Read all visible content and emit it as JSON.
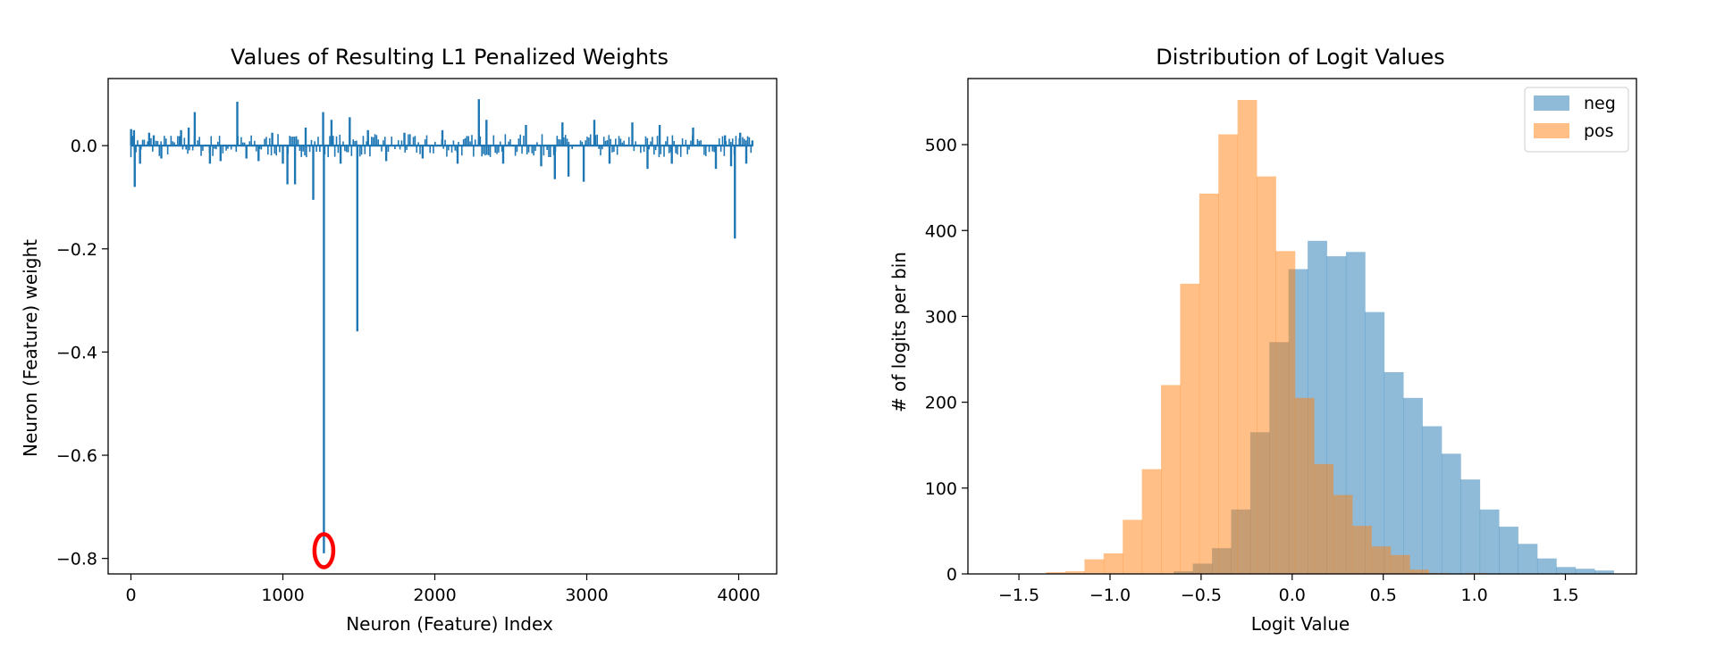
{
  "chart_data": [
    {
      "type": "line",
      "title": "Values of Resulting L1 Penalized Weights",
      "xlabel": "Neuron (Feature) Index",
      "ylabel": "Neuron (Feature) weight",
      "xlim": [
        -150,
        4250
      ],
      "ylim": [
        -0.83,
        0.13
      ],
      "xticks": [
        0,
        1000,
        2000,
        3000,
        4000
      ],
      "xtick_labels": [
        "0",
        "1000",
        "2000",
        "3000",
        "4000"
      ],
      "yticks": [
        0.0,
        -0.2,
        -0.4,
        -0.6,
        -0.8
      ],
      "ytick_labels": [
        "0.0",
        "−0.2",
        "−0.4",
        "−0.6",
        "−0.8"
      ],
      "color": "#1f77b4",
      "n_points": 4096,
      "baseline": 0.0,
      "spikes": [
        {
          "x": 1,
          "y": 0.032
        },
        {
          "x": 20,
          "y": 0.03
        },
        {
          "x": 25,
          "y": -0.08
        },
        {
          "x": 60,
          "y": -0.035
        },
        {
          "x": 120,
          "y": 0.025
        },
        {
          "x": 150,
          "y": 0.02
        },
        {
          "x": 200,
          "y": -0.025
        },
        {
          "x": 330,
          "y": 0.03
        },
        {
          "x": 380,
          "y": 0.035
        },
        {
          "x": 420,
          "y": 0.065
        },
        {
          "x": 520,
          "y": -0.035
        },
        {
          "x": 590,
          "y": -0.03
        },
        {
          "x": 700,
          "y": 0.085
        },
        {
          "x": 760,
          "y": -0.025
        },
        {
          "x": 840,
          "y": -0.03
        },
        {
          "x": 930,
          "y": 0.025
        },
        {
          "x": 1000,
          "y": -0.035
        },
        {
          "x": 1030,
          "y": -0.075
        },
        {
          "x": 1080,
          "y": -0.075
        },
        {
          "x": 1150,
          "y": 0.035
        },
        {
          "x": 1200,
          "y": -0.105
        },
        {
          "x": 1265,
          "y": 0.065
        },
        {
          "x": 1270,
          "y": -0.79
        },
        {
          "x": 1320,
          "y": 0.05
        },
        {
          "x": 1380,
          "y": -0.035
        },
        {
          "x": 1440,
          "y": 0.055
        },
        {
          "x": 1490,
          "y": -0.36
        },
        {
          "x": 1560,
          "y": 0.03
        },
        {
          "x": 1680,
          "y": -0.03
        },
        {
          "x": 1800,
          "y": 0.025
        },
        {
          "x": 1920,
          "y": -0.025
        },
        {
          "x": 2050,
          "y": 0.03
        },
        {
          "x": 2150,
          "y": -0.035
        },
        {
          "x": 2290,
          "y": 0.09
        },
        {
          "x": 2340,
          "y": 0.05
        },
        {
          "x": 2450,
          "y": -0.035
        },
        {
          "x": 2600,
          "y": 0.04
        },
        {
          "x": 2700,
          "y": -0.04
        },
        {
          "x": 2790,
          "y": -0.065
        },
        {
          "x": 2840,
          "y": 0.045
        },
        {
          "x": 2880,
          "y": -0.06
        },
        {
          "x": 2980,
          "y": -0.07
        },
        {
          "x": 3050,
          "y": 0.05
        },
        {
          "x": 3150,
          "y": -0.035
        },
        {
          "x": 3300,
          "y": 0.045
        },
        {
          "x": 3400,
          "y": -0.045
        },
        {
          "x": 3480,
          "y": 0.04
        },
        {
          "x": 3560,
          "y": -0.035
        },
        {
          "x": 3700,
          "y": 0.035
        },
        {
          "x": 3850,
          "y": -0.045
        },
        {
          "x": 3910,
          "y": 0.02
        },
        {
          "x": 3950,
          "y": -0.04
        },
        {
          "x": 3975,
          "y": -0.18
        },
        {
          "x": 4010,
          "y": 0.025
        },
        {
          "x": 4050,
          "y": -0.035
        },
        {
          "x": 4090,
          "y": 0.01
        }
      ],
      "annotations": [
        {
          "type": "circle",
          "color": "#ff0000",
          "x": 1270,
          "y": -0.785,
          "radius_data": {
            "rx": 62,
            "ry": 0.032
          }
        }
      ]
    },
    {
      "type": "histogram",
      "title": "Distribution of Logit Values",
      "xlabel": "Logit Value",
      "ylabel": "# of logits per bin",
      "xlim": [
        -1.78,
        1.89
      ],
      "ylim": [
        0,
        577
      ],
      "xticks": [
        -1.5,
        -1.0,
        -0.5,
        0.0,
        0.5,
        1.0,
        1.5
      ],
      "xtick_labels": [
        "−1.5",
        "−1.0",
        "−0.5",
        "0.0",
        "0.5",
        "1.0",
        "1.5"
      ],
      "yticks": [
        0,
        100,
        200,
        300,
        400,
        500
      ],
      "ytick_labels": [
        "0",
        "100",
        "200",
        "300",
        "400",
        "500"
      ],
      "legend_position": "top-right",
      "alpha": 0.5,
      "series": [
        {
          "name": "neg",
          "color": "#1f77b4",
          "bin_start": -0.65,
          "bin_width": 0.105,
          "counts": [
            3,
            12,
            30,
            75,
            165,
            270,
            355,
            388,
            370,
            375,
            305,
            235,
            205,
            172,
            140,
            110,
            75,
            55,
            35,
            18,
            8,
            6,
            4
          ]
        },
        {
          "name": "pos",
          "color": "#ff7f0e",
          "bin_start": -1.35,
          "bin_width": 0.105,
          "counts": [
            2,
            3,
            17,
            24,
            63,
            122,
            220,
            338,
            443,
            512,
            552,
            463,
            376,
            205,
            128,
            92,
            56,
            32,
            22,
            5,
            1,
            0,
            1
          ]
        }
      ]
    }
  ]
}
